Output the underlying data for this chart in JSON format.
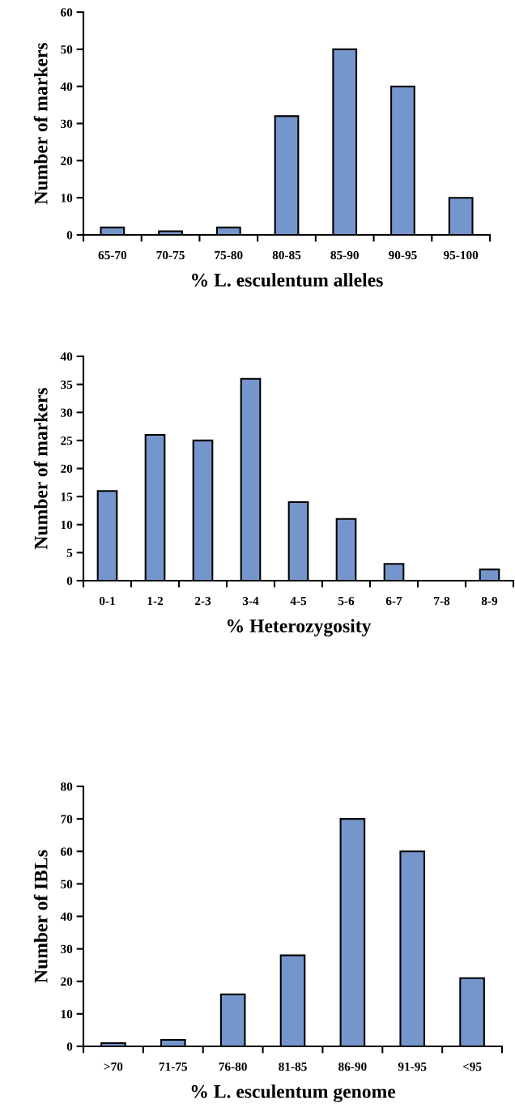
{
  "chart_data": [
    {
      "type": "bar",
      "xlabel": "% L. esculentum alleles",
      "ylabel": "Number of markers",
      "categories": [
        "65-70",
        "70-75",
        "75-80",
        "80-85",
        "85-90",
        "90-95",
        "95-100"
      ],
      "values": [
        2,
        1,
        2,
        32,
        50,
        40,
        10
      ],
      "color": "#7596cc",
      "ylim": [
        0,
        60
      ],
      "yticks": [
        0,
        10,
        20,
        30,
        40,
        50,
        60
      ],
      "grid": false,
      "legend": false
    },
    {
      "type": "bar",
      "xlabel": "% Heterozygosity",
      "ylabel": "Number of markers",
      "categories": [
        "0-1",
        "1-2",
        "2-3",
        "3-4",
        "4-5",
        "5-6",
        "6-7",
        "7-8",
        "8-9"
      ],
      "values": [
        16,
        26,
        25,
        36,
        14,
        11,
        3,
        0,
        2
      ],
      "color": "#7596cc",
      "ylim": [
        0,
        40
      ],
      "yticks": [
        0,
        5,
        10,
        15,
        20,
        25,
        30,
        35,
        40
      ],
      "grid": false,
      "legend": false
    },
    {
      "type": "bar",
      "xlabel": "% L. esculentum genome",
      "ylabel": "Number of IBLs",
      "categories": [
        ">70",
        "71-75",
        "76-80",
        "81-85",
        "86-90",
        "91-95",
        "<95"
      ],
      "values": [
        1,
        2,
        16,
        28,
        70,
        60,
        21
      ],
      "color": "#7596cc",
      "ylim": [
        0,
        80
      ],
      "yticks": [
        0,
        10,
        20,
        30,
        40,
        50,
        60,
        70,
        80
      ],
      "grid": false,
      "legend": false
    }
  ]
}
